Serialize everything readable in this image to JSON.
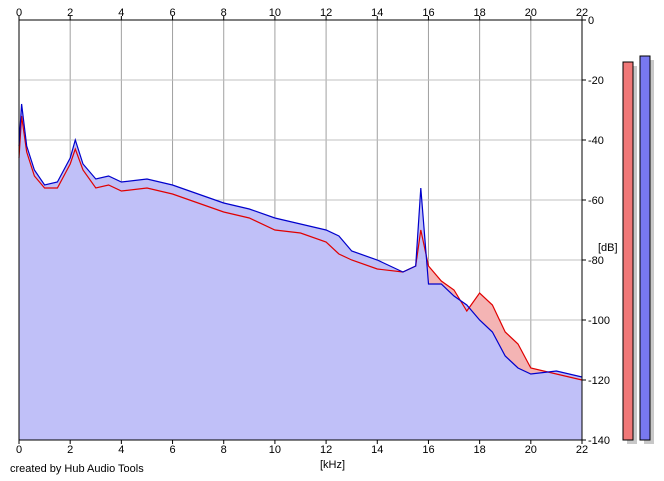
{
  "chart_data": {
    "type": "area",
    "xlabel": "[kHz]",
    "ylabel": "[dB]",
    "xlim": [
      0,
      22
    ],
    "ylim": [
      -140,
      0
    ],
    "x_ticks": [
      0,
      2,
      4,
      6,
      8,
      10,
      12,
      14,
      16,
      18,
      20,
      22
    ],
    "y_ticks": [
      0,
      -20,
      -40,
      -60,
      -80,
      -100,
      -120,
      -140
    ],
    "grid": true,
    "series": [
      {
        "color": "#e00000",
        "x": [
          0,
          0.1,
          0.3,
          0.6,
          1.0,
          1.5,
          2.0,
          2.2,
          2.5,
          3.0,
          3.5,
          4.0,
          5.0,
          6.0,
          7.0,
          8.0,
          9.0,
          10.0,
          11.0,
          12.0,
          12.5,
          13.0,
          14.0,
          15.0,
          15.5,
          15.7,
          16.0,
          16.5,
          17.0,
          17.5,
          18.0,
          18.5,
          19.0,
          19.5,
          20.0,
          21.0,
          22.0
        ],
        "y": [
          -46,
          -32,
          -44,
          -52,
          -56,
          -56,
          -48,
          -43,
          -50,
          -56,
          -55,
          -57,
          -56,
          -58,
          -61,
          -64,
          -66,
          -70,
          -71,
          -74,
          -78,
          -80,
          -83,
          -84,
          -82,
          -70,
          -82,
          -87,
          -90,
          -97,
          -91,
          -95,
          -104,
          -108,
          -116,
          -118,
          -120
        ]
      },
      {
        "color": "#0000cc",
        "x": [
          0,
          0.1,
          0.3,
          0.6,
          1.0,
          1.5,
          2.0,
          2.2,
          2.5,
          3.0,
          3.5,
          4.0,
          5.0,
          6.0,
          7.0,
          8.0,
          9.0,
          10.0,
          11.0,
          12.0,
          12.5,
          13.0,
          14.0,
          15.0,
          15.5,
          15.7,
          16.0,
          16.5,
          17.0,
          17.5,
          18.0,
          18.5,
          19.0,
          19.5,
          20.0,
          21.0,
          22.0
        ],
        "y": [
          -42,
          -28,
          -42,
          -50,
          -55,
          -54,
          -46,
          -40,
          -48,
          -53,
          -52,
          -54,
          -53,
          -55,
          -58,
          -61,
          -63,
          -66,
          -68,
          -70,
          -72,
          -77,
          -80,
          -84,
          -82,
          -56,
          -88,
          -88,
          -92,
          -95,
          -100,
          -104,
          -112,
          -116,
          -118,
          -117,
          -119
        ]
      }
    ],
    "level_meters": [
      {
        "color": "#f07878",
        "level_db": -14
      },
      {
        "color": "#7878f0",
        "level_db": -12
      }
    ]
  },
  "footer": {
    "credit": "created by Hub Audio Tools"
  }
}
